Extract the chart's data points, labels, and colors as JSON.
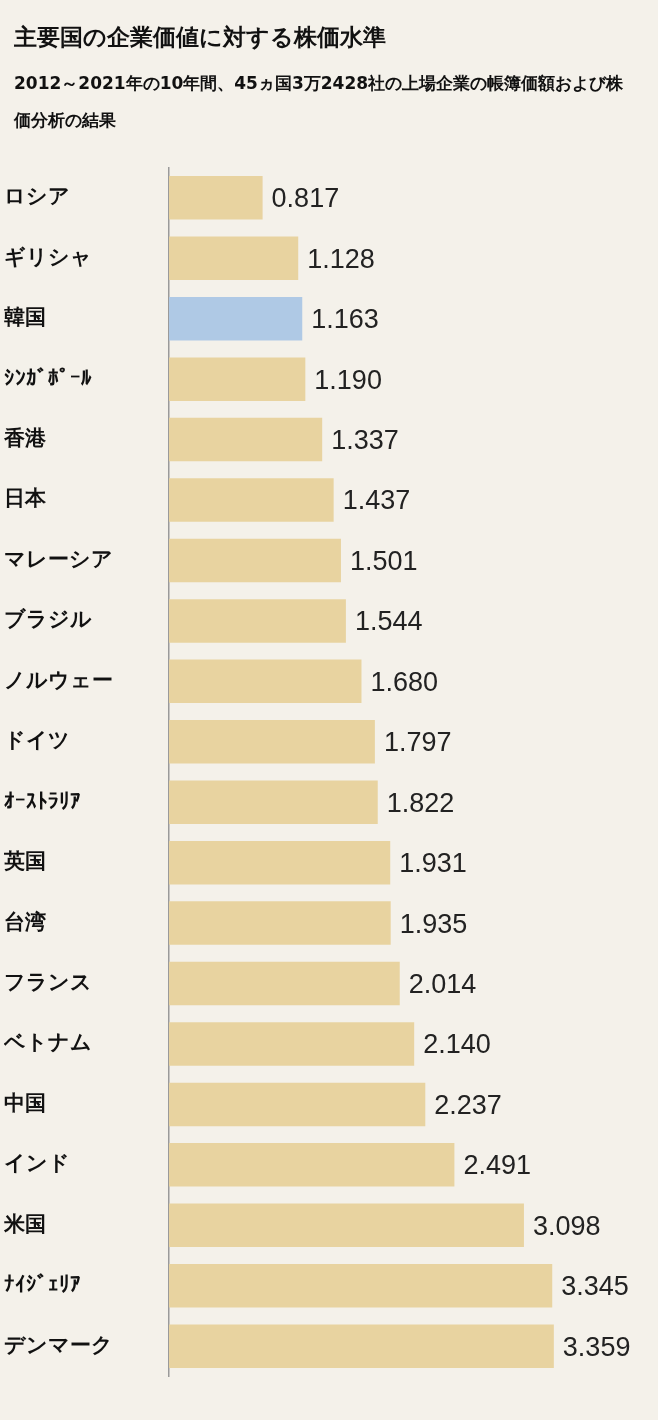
{
  "chart_data": {
    "type": "bar",
    "orientation": "horizontal",
    "title": "主要国の企業価値に対する株価水準",
    "subtitle": "2012～2021年の10年間、45ヵ国3万2428社の上場企業の帳簿価額および株価分析の結果",
    "categories": [
      "ロシア",
      "ギリシャ",
      "韓国",
      "ｼﾝｶﾞﾎﾟｰﾙ",
      "香港",
      "日本",
      "マレーシア",
      "ブラジル",
      "ノルウェー",
      "ドイツ",
      "ｵｰｽﾄﾗﾘｱ",
      "英国",
      "台湾",
      "フランス",
      "ベトナム",
      "中国",
      "インド",
      "米国",
      "ﾅｲｼﾞｪﾘｱ",
      "デンマーク"
    ],
    "values": [
      0.817,
      1.128,
      1.163,
      1.19,
      1.337,
      1.437,
      1.501,
      1.544,
      1.68,
      1.797,
      1.822,
      1.931,
      1.935,
      2.014,
      2.14,
      2.237,
      2.491,
      3.098,
      3.345,
      3.359
    ],
    "colors": [
      "#e8d3a0",
      "#e8d3a0",
      "#afc9e5",
      "#e8d3a0",
      "#e8d3a0",
      "#e8d3a0",
      "#e8d3a0",
      "#e8d3a0",
      "#e8d3a0",
      "#e8d3a0",
      "#e8d3a0",
      "#e8d3a0",
      "#e8d3a0",
      "#e8d3a0",
      "#e8d3a0",
      "#e8d3a0",
      "#e8d3a0",
      "#e8d3a0",
      "#e8d3a0",
      "#e8d3a0"
    ],
    "value_labels": [
      "0.817",
      "1.128",
      "1.163",
      "1.190",
      "1.337",
      "1.437",
      "1.501",
      "1.544",
      "1.680",
      "1.797",
      "1.822",
      "1.931",
      "1.935",
      "2.014",
      "2.140",
      "2.237",
      "2.491",
      "3.098",
      "3.345",
      "3.359"
    ],
    "tick_labels": "y",
    "grid": false,
    "legend": false
  }
}
